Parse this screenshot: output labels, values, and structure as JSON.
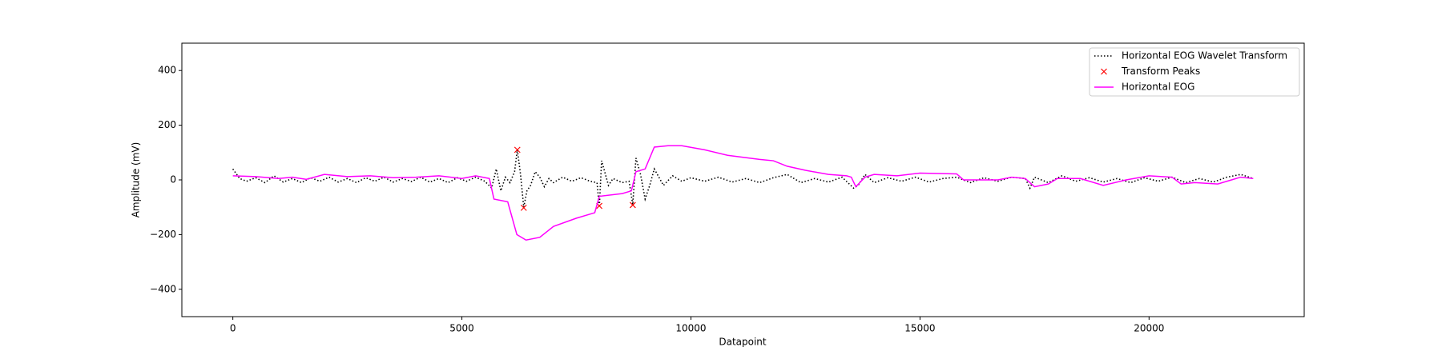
{
  "chart_data": {
    "type": "line",
    "x_label": "Datapoint",
    "y_label": "Amplitude (mV)",
    "xlim": [
      -1113,
      23387
    ],
    "ylim": [
      -500,
      500
    ],
    "xticks": [
      0,
      5000,
      10000,
      15000,
      20000
    ],
    "yticks": [
      {
        "value": -400,
        "label": "−400"
      },
      {
        "value": -200,
        "label": "−200"
      },
      0,
      200,
      400
    ],
    "legend": "upper right",
    "series": [
      {
        "name": "Horizontal EOG Wavelet Transform",
        "type": "line",
        "style": "dotted",
        "color": "#000000",
        "x": [
          0,
          150,
          300,
          500,
          700,
          900,
          1100,
          1300,
          1500,
          1700,
          1900,
          2100,
          2300,
          2500,
          2700,
          2900,
          3100,
          3300,
          3500,
          3700,
          3900,
          4100,
          4300,
          4500,
          4700,
          4900,
          5100,
          5300,
          5500,
          5650,
          5750,
          5850,
          5950,
          6050,
          6150,
          6210,
          6280,
          6350,
          6420,
          6500,
          6600,
          6700,
          6800,
          6900,
          7000,
          7200,
          7400,
          7600,
          7800,
          7950,
          8000,
          8050,
          8100,
          8200,
          8300,
          8500,
          8650,
          8730,
          8800,
          8900,
          9000,
          9100,
          9200,
          9300,
          9400,
          9600,
          9800,
          10000,
          10300,
          10600,
          10900,
          11200,
          11500,
          11800,
          12100,
          12400,
          12700,
          13000,
          13300,
          13550,
          13650,
          13800,
          14000,
          14300,
          14600,
          14900,
          15200,
          15500,
          15800,
          16100,
          16400,
          16700,
          17000,
          17300,
          17400,
          17500,
          17800,
          18100,
          18400,
          18700,
          19000,
          19300,
          19600,
          19900,
          20200,
          20500,
          20800,
          21100,
          21400,
          21700,
          22000,
          22274
        ],
        "values": [
          40,
          5,
          -5,
          8,
          -10,
          15,
          -8,
          5,
          -10,
          8,
          -5,
          10,
          -8,
          5,
          -10,
          8,
          -5,
          10,
          -8,
          5,
          -6,
          10,
          -8,
          5,
          -10,
          8,
          -5,
          10,
          -5,
          -30,
          40,
          -40,
          10,
          -10,
          30,
          110,
          20,
          -100,
          -40,
          -20,
          30,
          10,
          -25,
          5,
          -10,
          10,
          -5,
          8,
          -5,
          -10,
          -100,
          70,
          40,
          -20,
          5,
          -10,
          -5,
          -90,
          80,
          20,
          -70,
          -20,
          40,
          10,
          -20,
          15,
          -5,
          8,
          -5,
          10,
          -8,
          5,
          -10,
          8,
          20,
          -10,
          5,
          -8,
          10,
          -30,
          -20,
          20,
          -10,
          8,
          -5,
          10,
          -8,
          5,
          10,
          -10,
          8,
          -5,
          10,
          5,
          -30,
          10,
          -10,
          15,
          -5,
          8,
          -8,
          5,
          -10,
          8,
          -5,
          10,
          -10,
          5,
          -8,
          10,
          20,
          5
        ]
      },
      {
        "name": "Transform Peaks",
        "type": "scatter",
        "color": "#ff0000",
        "x": [
          6210,
          6350,
          8000,
          8730
        ],
        "values": [
          110,
          -102,
          -95,
          -92
        ]
      },
      {
        "name": "Horizontal EOG",
        "type": "line",
        "style": "solid",
        "color": "#ff00ff",
        "x": [
          0,
          500,
          1000,
          1300,
          1600,
          2000,
          2500,
          3000,
          3500,
          4000,
          4500,
          5000,
          5300,
          5600,
          5700,
          6000,
          6200,
          6400,
          6700,
          7000,
          7500,
          7900,
          8000,
          8500,
          8700,
          8800,
          9000,
          9200,
          9500,
          9800,
          10300,
          10800,
          11500,
          11800,
          12100,
          12500,
          13000,
          13400,
          13500,
          13600,
          13800,
          14000,
          14500,
          15000,
          15800,
          15950,
          16700,
          17000,
          17300,
          17500,
          17800,
          18000,
          18500,
          19000,
          19500,
          20000,
          20500,
          20700,
          21000,
          21500,
          21800,
          22000,
          22274
        ],
        "values": [
          15,
          12,
          5,
          10,
          2,
          20,
          12,
          15,
          8,
          10,
          15,
          5,
          15,
          5,
          -70,
          -80,
          -200,
          -220,
          -210,
          -170,
          -140,
          -120,
          -60,
          -50,
          -40,
          30,
          40,
          120,
          125,
          125,
          110,
          90,
          75,
          70,
          50,
          35,
          20,
          15,
          10,
          -25,
          10,
          20,
          15,
          25,
          22,
          0,
          0,
          10,
          5,
          -25,
          -15,
          5,
          5,
          -20,
          0,
          15,
          10,
          -15,
          -10,
          -15,
          0,
          10,
          5
        ]
      }
    ]
  }
}
